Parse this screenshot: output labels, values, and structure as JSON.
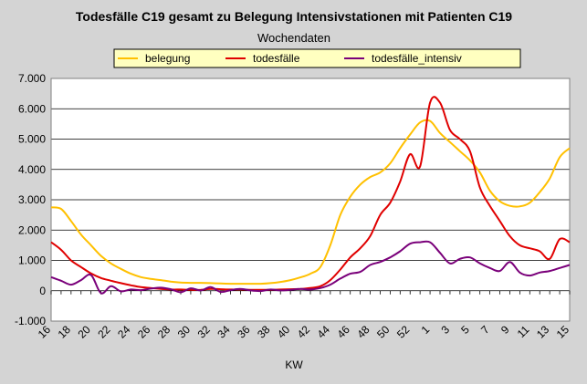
{
  "chart_data": {
    "type": "line",
    "title": "Todesfälle C19 gesamt zu Belegung Intensivstationen mit Patienten C19",
    "subtitle": "Wochendaten",
    "xlabel": "KW",
    "ylabel": "",
    "ylim": [
      -1000,
      7000
    ],
    "yticks": [
      7000,
      6000,
      5000,
      4000,
      3000,
      2000,
      1000,
      0,
      -1000
    ],
    "ytick_labels": [
      "7.000",
      "6.000",
      "5.000",
      "4.000",
      "3.000",
      "2.000",
      "1.000",
      "0",
      "-1.000"
    ],
    "x_tick_labels": [
      "16",
      "18",
      "20",
      "22",
      "24",
      "26",
      "28",
      "30",
      "32",
      "34",
      "36",
      "38",
      "40",
      "42",
      "44",
      "46",
      "48",
      "50",
      "52",
      "1",
      "3",
      "5",
      "7",
      "9",
      "11",
      "13",
      "15"
    ],
    "categories": [
      "16",
      "17",
      "18",
      "19",
      "20",
      "21",
      "22",
      "23",
      "24",
      "25",
      "26",
      "27",
      "28",
      "29",
      "30",
      "31",
      "32",
      "33",
      "34",
      "35",
      "36",
      "37",
      "38",
      "39",
      "40",
      "41",
      "42",
      "43",
      "44",
      "45",
      "46",
      "47",
      "48",
      "49",
      "50",
      "51",
      "52",
      "53",
      "1",
      "2",
      "3",
      "4",
      "5",
      "6",
      "7",
      "8",
      "9",
      "10",
      "11",
      "12",
      "13",
      "14",
      "15"
    ],
    "legend_position": "top",
    "grid": true,
    "series": [
      {
        "name": "belegung",
        "color": "#ffc000",
        "values": [
          2750,
          2700,
          2300,
          1850,
          1500,
          1150,
          900,
          720,
          560,
          450,
          390,
          350,
          300,
          270,
          260,
          260,
          250,
          240,
          230,
          230,
          230,
          230,
          250,
          290,
          350,
          440,
          560,
          780,
          1500,
          2500,
          3100,
          3500,
          3750,
          3900,
          4200,
          4700,
          5150,
          5550,
          5600,
          5200,
          4900,
          4600,
          4300,
          3900,
          3300,
          2950,
          2800,
          2780,
          2900,
          3250,
          3700,
          4400,
          4700
        ]
      },
      {
        "name": "todesfälle",
        "color": "#e00000",
        "values": [
          1600,
          1350,
          1000,
          780,
          570,
          420,
          330,
          250,
          180,
          120,
          90,
          60,
          40,
          40,
          30,
          30,
          60,
          50,
          40,
          40,
          30,
          30,
          30,
          40,
          50,
          60,
          90,
          150,
          350,
          700,
          1100,
          1400,
          1800,
          2500,
          2900,
          3600,
          4500,
          4100,
          6200,
          6200,
          5300,
          5000,
          4600,
          3400,
          2800,
          2300,
          1800,
          1500,
          1400,
          1300,
          1050,
          1700,
          1600
        ]
      },
      {
        "name": "todesfälle_intensiv",
        "color": "#7a007a",
        "values": [
          450,
          330,
          200,
          350,
          520,
          -80,
          150,
          -20,
          40,
          20,
          70,
          100,
          50,
          -50,
          80,
          10,
          120,
          -40,
          20,
          60,
          10,
          -10,
          40,
          10,
          30,
          60,
          40,
          90,
          200,
          400,
          560,
          620,
          850,
          950,
          1100,
          1300,
          1550,
          1600,
          1600,
          1250,
          900,
          1050,
          1100,
          900,
          750,
          650,
          950,
          600,
          500,
          600,
          650,
          750,
          850
        ]
      }
    ]
  }
}
